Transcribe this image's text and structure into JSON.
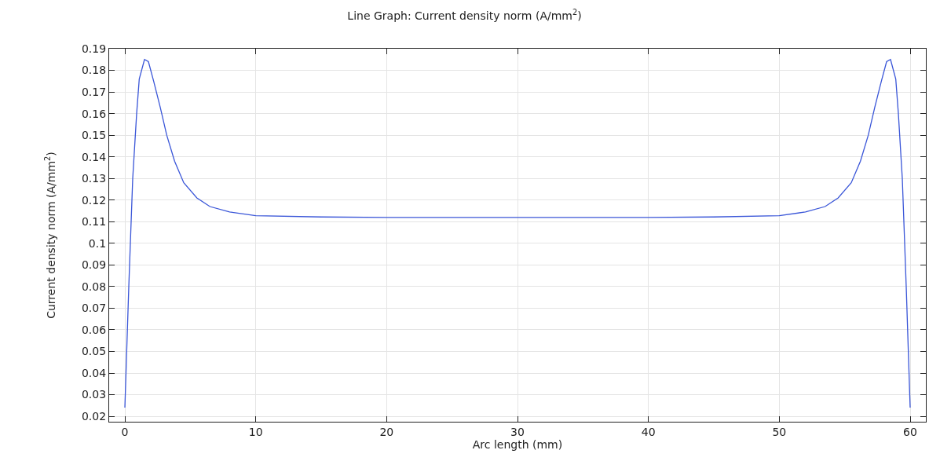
{
  "chart_data": {
    "type": "line",
    "title": "Line Graph: Current density norm (A/mm$^{2}$)",
    "xlabel": "Arc length (mm)",
    "ylabel": "Current density norm (A/mm$^{2}$)",
    "x": [
      0,
      0.3,
      0.6,
      0.9,
      1.1,
      1.5,
      1.8,
      2.2,
      2.7,
      3.2,
      3.8,
      4.5,
      5.5,
      6.5,
      8,
      10,
      15,
      20,
      30,
      40,
      45,
      50,
      52,
      53.5,
      54.5,
      55.5,
      56.2,
      56.8,
      57.3,
      57.8,
      58.2,
      58.5,
      58.9,
      59.1,
      59.4,
      59.7,
      60
    ],
    "series": [
      {
        "color": "#3a56d8",
        "values": [
          0.024,
          0.08,
          0.13,
          0.16,
          0.176,
          0.185,
          0.184,
          0.175,
          0.163,
          0.15,
          0.138,
          0.128,
          0.121,
          0.117,
          0.1145,
          0.1128,
          0.1122,
          0.112,
          0.112,
          0.112,
          0.1122,
          0.1128,
          0.1145,
          0.117,
          0.121,
          0.128,
          0.138,
          0.15,
          0.163,
          0.175,
          0.184,
          0.185,
          0.176,
          0.16,
          0.13,
          0.08,
          0.024
        ]
      }
    ],
    "xlim": [
      -1.2,
      61.2
    ],
    "ylim": [
      0.0175,
      0.19
    ],
    "xticks": [
      0,
      10,
      20,
      30,
      40,
      50,
      60
    ],
    "yticks": [
      0.02,
      0.03,
      0.04,
      0.05,
      0.06,
      0.07,
      0.08,
      0.09,
      0.1,
      0.11,
      0.12,
      0.13,
      0.14,
      0.15,
      0.16,
      0.17,
      0.18,
      0.19
    ],
    "grid": true,
    "marker": "none",
    "line_style": "solid"
  }
}
